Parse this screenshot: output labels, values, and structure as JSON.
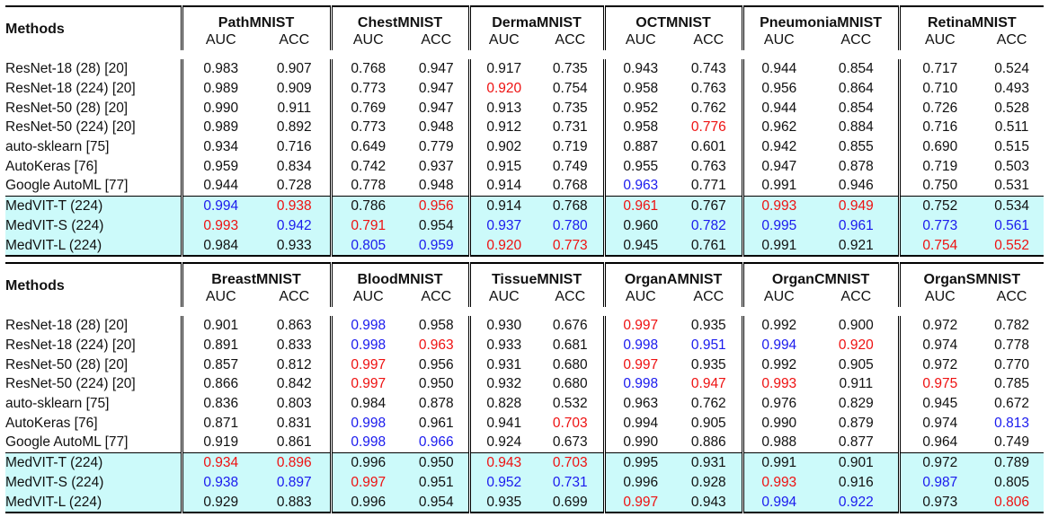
{
  "methods_header": "Methods",
  "metric_labels": [
    "AUC",
    "ACC"
  ],
  "legend_colors": {
    "red": "#ee1111",
    "blue": "#1a1aee",
    "highlight_bg": "#ccfafa"
  },
  "method_names": [
    "ResNet-18 (28) [20]",
    "ResNet-18 (224) [20]",
    "ResNet-50 (28) [20]",
    "ResNet-50 (224) [20]",
    "auto-sklearn [75]",
    "AutoKeras [76]",
    "Google AutoML [77]",
    "MedVIT-T (224)",
    "MedVIT-S (224)",
    "MedVIT-L (224)"
  ],
  "table1": {
    "datasets": [
      "PathMNIST",
      "ChestMNIST",
      "DermaMNIST",
      "OCTMNIST",
      "PneumoniaMNIST",
      "RetinaMNIST"
    ],
    "rows": [
      [
        "0.983",
        "0.907",
        "0.768",
        "0.947",
        "0.917",
        "0.735",
        "0.943",
        "0.743",
        "0.944",
        "0.854",
        "0.717",
        "0.524"
      ],
      [
        "0.989",
        "0.909",
        "0.773",
        "0.947",
        "0.920",
        "0.754",
        "0.958",
        "0.763",
        "0.956",
        "0.864",
        "0.710",
        "0.493"
      ],
      [
        "0.990",
        "0.911",
        "0.769",
        "0.947",
        "0.913",
        "0.735",
        "0.952",
        "0.762",
        "0.944",
        "0.854",
        "0.726",
        "0.528"
      ],
      [
        "0.989",
        "0.892",
        "0.773",
        "0.948",
        "0.912",
        "0.731",
        "0.958",
        "0.776",
        "0.962",
        "0.884",
        "0.716",
        "0.511"
      ],
      [
        "0.934",
        "0.716",
        "0.649",
        "0.779",
        "0.902",
        "0.719",
        "0.887",
        "0.601",
        "0.942",
        "0.855",
        "0.690",
        "0.515"
      ],
      [
        "0.959",
        "0.834",
        "0.742",
        "0.937",
        "0.915",
        "0.749",
        "0.955",
        "0.763",
        "0.947",
        "0.878",
        "0.719",
        "0.503"
      ],
      [
        "0.944",
        "0.728",
        "0.778",
        "0.948",
        "0.914",
        "0.768",
        "0.963",
        "0.771",
        "0.991",
        "0.946",
        "0.750",
        "0.531"
      ],
      [
        "0.994",
        "0.938",
        "0.786",
        "0.956",
        "0.914",
        "0.768",
        "0.961",
        "0.767",
        "0.993",
        "0.949",
        "0.752",
        "0.534"
      ],
      [
        "0.993",
        "0.942",
        "0.791",
        "0.954",
        "0.937",
        "0.780",
        "0.960",
        "0.782",
        "0.995",
        "0.961",
        "0.773",
        "0.561"
      ],
      [
        "0.984",
        "0.933",
        "0.805",
        "0.959",
        "0.920",
        "0.773",
        "0.945",
        "0.761",
        "0.991",
        "0.921",
        "0.754",
        "0.552"
      ]
    ],
    "colors": [
      [
        "",
        "",
        "",
        "",
        "",
        "",
        "",
        "",
        "",
        "",
        "",
        ""
      ],
      [
        "",
        "",
        "",
        "",
        "r",
        "",
        "",
        "",
        "",
        "",
        "",
        ""
      ],
      [
        "",
        "",
        "",
        "",
        "",
        "",
        "",
        "",
        "",
        "",
        "",
        ""
      ],
      [
        "",
        "",
        "",
        "",
        "",
        "",
        "",
        "r",
        "",
        "",
        "",
        ""
      ],
      [
        "",
        "",
        "",
        "",
        "",
        "",
        "",
        "",
        "",
        "",
        "",
        ""
      ],
      [
        "",
        "",
        "",
        "",
        "",
        "",
        "",
        "",
        "",
        "",
        "",
        ""
      ],
      [
        "",
        "",
        "",
        "",
        "",
        "",
        "b",
        "",
        "",
        "",
        "",
        ""
      ],
      [
        "b",
        "r",
        "",
        "r",
        "",
        "",
        "r",
        "",
        "r",
        "r",
        "",
        ""
      ],
      [
        "r",
        "b",
        "r",
        "",
        "b",
        "b",
        "",
        "b",
        "b",
        "b",
        "b",
        "b"
      ],
      [
        "",
        "",
        "b",
        "b",
        "r",
        "r",
        "",
        "",
        "",
        "",
        "r",
        "r"
      ]
    ]
  },
  "table2": {
    "datasets": [
      "BreastMNIST",
      "BloodMNIST",
      "TissueMNIST",
      "OrganAMNIST",
      "OrganCMNIST",
      "OrganSMNIST"
    ],
    "rows": [
      [
        "0.901",
        "0.863",
        "0.998",
        "0.958",
        "0.930",
        "0.676",
        "0.997",
        "0.935",
        "0.992",
        "0.900",
        "0.972",
        "0.782"
      ],
      [
        "0.891",
        "0.833",
        "0.998",
        "0.963",
        "0.933",
        "0.681",
        "0.998",
        "0.951",
        "0.994",
        "0.920",
        "0.974",
        "0.778"
      ],
      [
        "0.857",
        "0.812",
        "0.997",
        "0.956",
        "0.931",
        "0.680",
        "0.997",
        "0.935",
        "0.992",
        "0.905",
        "0.972",
        "0.770"
      ],
      [
        "0.866",
        "0.842",
        "0.997",
        "0.950",
        "0.932",
        "0.680",
        "0.998",
        "0.947",
        "0.993",
        "0.911",
        "0.975",
        "0.785"
      ],
      [
        "0.836",
        "0.803",
        "0.984",
        "0.878",
        "0.828",
        "0.532",
        "0.963",
        "0.762",
        "0.976",
        "0.829",
        "0.945",
        "0.672"
      ],
      [
        "0.871",
        "0.831",
        "0.998",
        "0.961",
        "0.941",
        "0.703",
        "0.994",
        "0.905",
        "0.990",
        "0.879",
        "0.974",
        "0.813"
      ],
      [
        "0.919",
        "0.861",
        "0.998",
        "0.966",
        "0.924",
        "0.673",
        "0.990",
        "0.886",
        "0.988",
        "0.877",
        "0.964",
        "0.749"
      ],
      [
        "0.934",
        "0.896",
        "0.996",
        "0.950",
        "0.943",
        "0.703",
        "0.995",
        "0.931",
        "0.991",
        "0.901",
        "0.972",
        "0.789"
      ],
      [
        "0.938",
        "0.897",
        "0.997",
        "0.951",
        "0.952",
        "0.731",
        "0.996",
        "0.928",
        "0.993",
        "0.916",
        "0.987",
        "0.805"
      ],
      [
        "0.929",
        "0.883",
        "0.996",
        "0.954",
        "0.935",
        "0.699",
        "0.997",
        "0.943",
        "0.994",
        "0.922",
        "0.973",
        "0.806"
      ]
    ],
    "colors": [
      [
        "",
        "",
        "b",
        "",
        "",
        "",
        "r",
        "",
        "",
        "",
        "",
        ""
      ],
      [
        "",
        "",
        "b",
        "r",
        "",
        "",
        "b",
        "b",
        "b",
        "r",
        "",
        ""
      ],
      [
        "",
        "",
        "r",
        "",
        "",
        "",
        "r",
        "",
        "",
        "",
        "",
        ""
      ],
      [
        "",
        "",
        "r",
        "",
        "",
        "",
        "b",
        "r",
        "r",
        "",
        "r",
        ""
      ],
      [
        "",
        "",
        "",
        "",
        "",
        "",
        "",
        "",
        "",
        "",
        "",
        ""
      ],
      [
        "",
        "",
        "b",
        "",
        "",
        "r",
        "",
        "",
        "",
        "",
        "",
        "b"
      ],
      [
        "",
        "",
        "b",
        "b",
        "",
        "",
        "",
        "",
        "",
        "",
        "",
        ""
      ],
      [
        "r",
        "r",
        "",
        "",
        "r",
        "r",
        "",
        "",
        "",
        "",
        "",
        ""
      ],
      [
        "b",
        "b",
        "r",
        "",
        "b",
        "b",
        "",
        "",
        "r",
        "",
        "b",
        ""
      ],
      [
        "",
        "",
        "",
        "",
        "",
        "",
        "r",
        "",
        "b",
        "b",
        "",
        "r"
      ]
    ]
  }
}
